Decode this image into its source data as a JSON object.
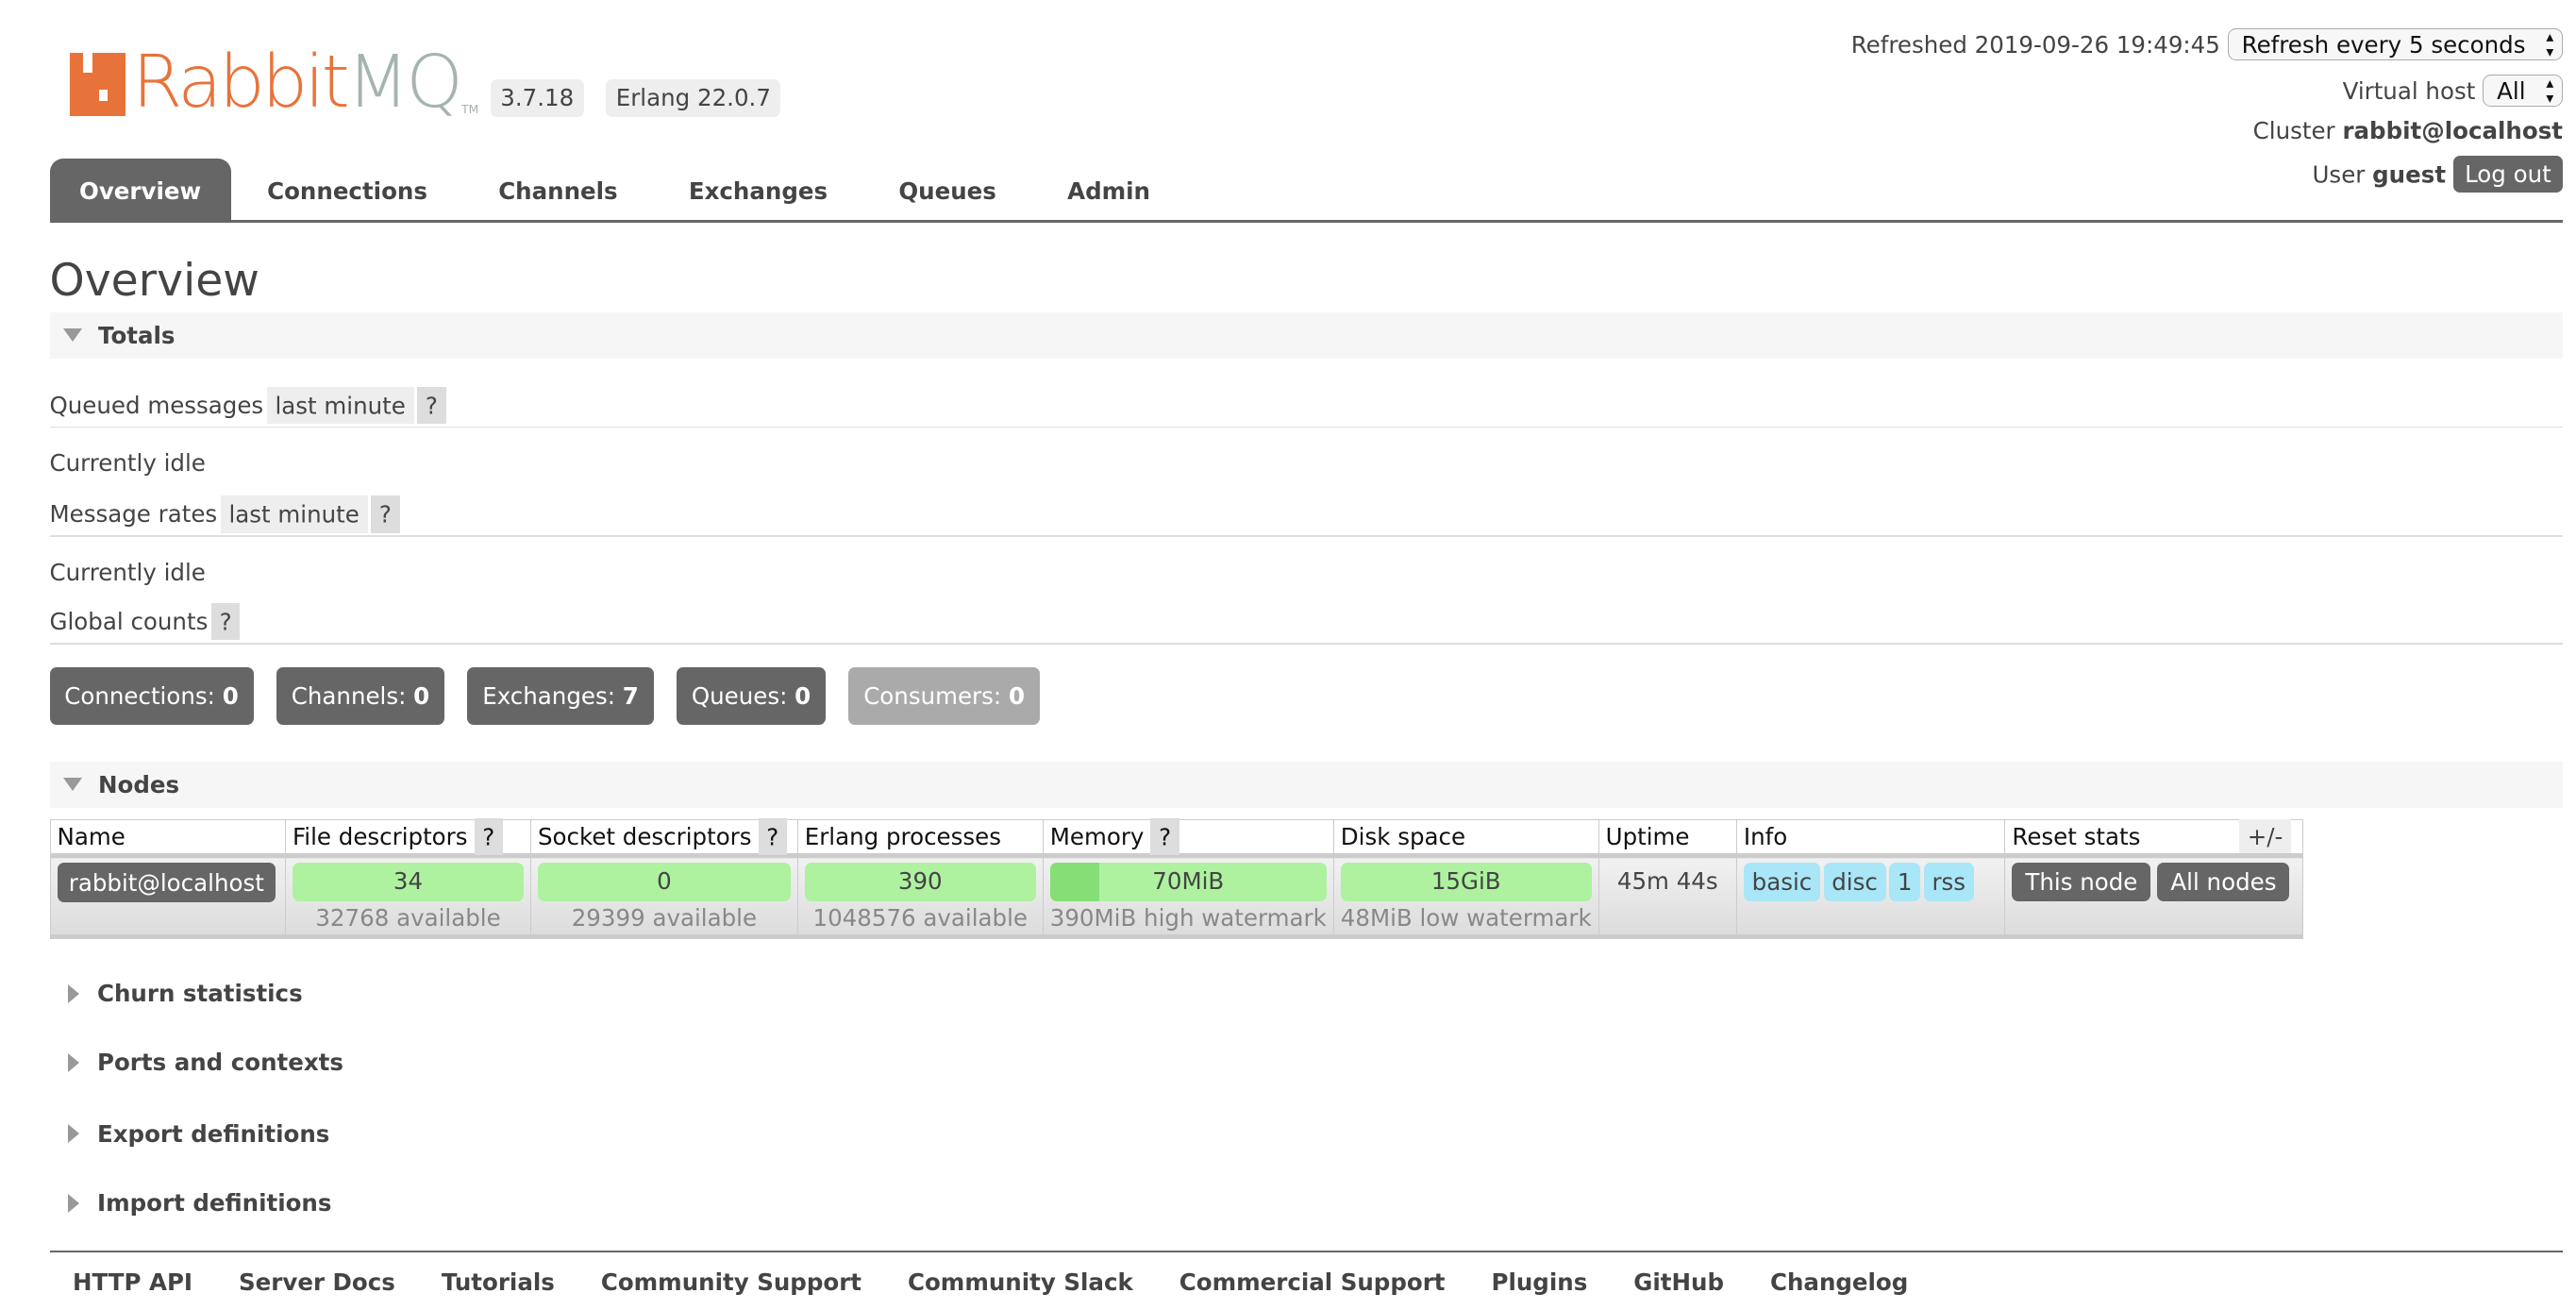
{
  "header": {
    "logo": "RabbitMQ",
    "version": "3.7.18",
    "erlang": "Erlang 22.0.7",
    "refreshed_label": "Refreshed 2019-09-26 19:49:45",
    "refresh_select": "Refresh every 5 seconds",
    "vhost_label": "Virtual host",
    "vhost_select": "All",
    "cluster_label": "Cluster",
    "cluster_name": "rabbit@localhost",
    "user_label": "User",
    "user_name": "guest",
    "logout": "Log out"
  },
  "tabs": [
    "Overview",
    "Connections",
    "Channels",
    "Exchanges",
    "Queues",
    "Admin"
  ],
  "page_title": "Overview",
  "totals": {
    "title": "Totals",
    "queued_label": "Queued messages",
    "queued_range": "last minute",
    "help": "?",
    "idle1": "Currently idle",
    "rates_label": "Message rates",
    "rates_range": "last minute",
    "idle2": "Currently idle",
    "global_label": "Global counts",
    "counts": [
      {
        "label": "Connections:",
        "value": "0"
      },
      {
        "label": "Channels:",
        "value": "0"
      },
      {
        "label": "Exchanges:",
        "value": "7"
      },
      {
        "label": "Queues:",
        "value": "0"
      },
      {
        "label": "Consumers:",
        "value": "0"
      }
    ]
  },
  "nodes": {
    "title": "Nodes",
    "columns": [
      "Name",
      "File descriptors",
      "Socket descriptors",
      "Erlang processes",
      "Memory",
      "Disk space",
      "Uptime",
      "Info",
      "Reset stats"
    ],
    "toggle": "+/-",
    "row": {
      "name": "rabbit@localhost",
      "fd": "34",
      "fd_sub": "32768 available",
      "sockets": "0",
      "sockets_sub": "29399 available",
      "procs": "390",
      "procs_sub": "1048576 available",
      "memory": "70MiB",
      "memory_sub": "390MiB high watermark",
      "memory_fraction": 0.18,
      "disk": "15GiB",
      "disk_sub": "48MiB low watermark",
      "uptime": "45m 44s",
      "info": [
        "basic",
        "disc",
        "1",
        "rss"
      ],
      "reset": [
        "This node",
        "All nodes"
      ]
    }
  },
  "collapsed_sections": [
    "Churn statistics",
    "Ports and contexts",
    "Export definitions",
    "Import definitions"
  ],
  "footer": [
    "HTTP API",
    "Server Docs",
    "Tutorials",
    "Community Support",
    "Community Slack",
    "Commercial Support",
    "Plugins",
    "GitHub",
    "Changelog"
  ],
  "colors": {
    "tab_active": "#666666",
    "bar_ok": "#aef2a0",
    "info_badge": "#a9e6f8",
    "logo_orange": "#e8733a"
  }
}
